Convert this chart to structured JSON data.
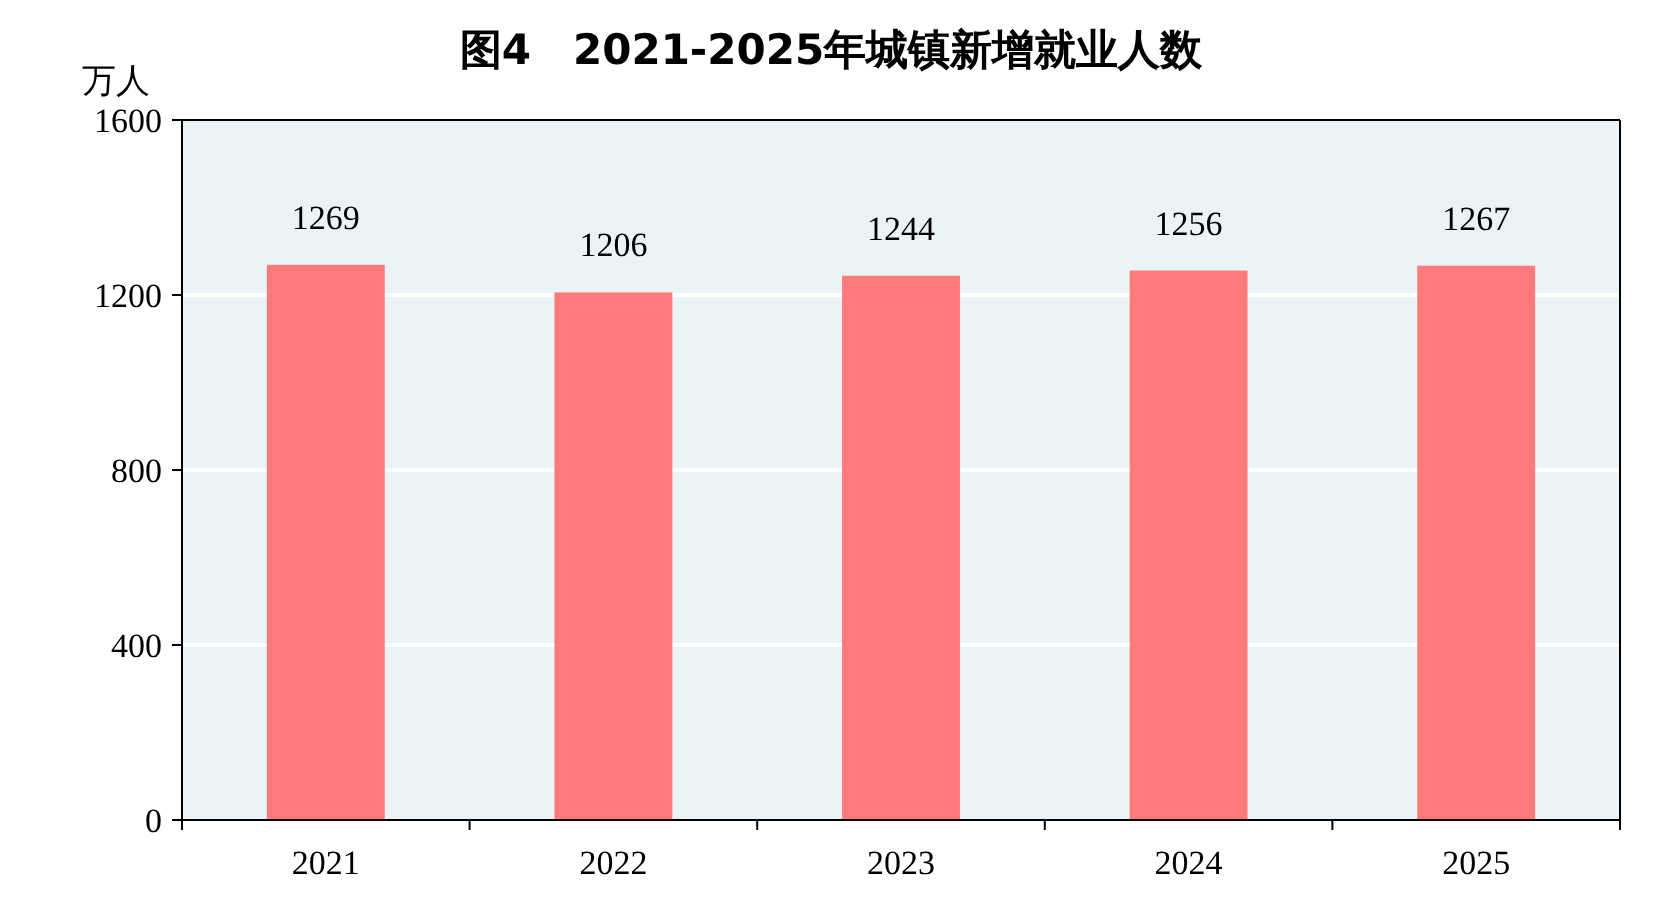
{
  "chart_data": {
    "type": "bar",
    "title": "图4　2021-2025年城镇新增就业人数",
    "ylabel": "万人",
    "categories": [
      "2021",
      "2022",
      "2023",
      "2024",
      "2025"
    ],
    "values": [
      1269,
      1206,
      1244,
      1256,
      1267
    ],
    "color": "#ff7b7b",
    "ylim": [
      0,
      1600
    ],
    "yticks": [
      0,
      400,
      800,
      1200,
      1600
    ],
    "grid": "y",
    "data_labels": true
  }
}
